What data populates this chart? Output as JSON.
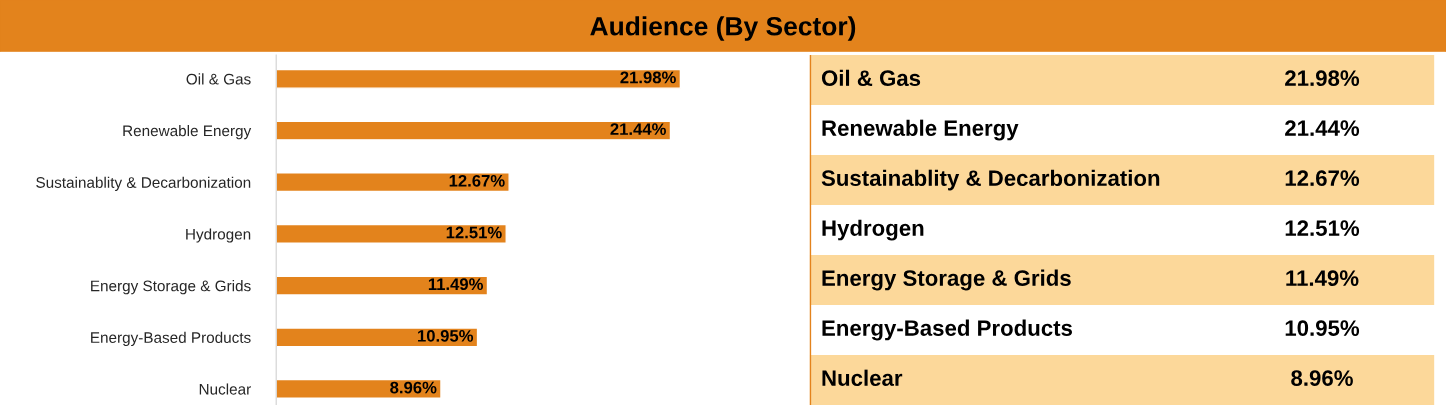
{
  "chart_data": {
    "type": "bar",
    "orientation": "horizontal",
    "title": "Audience (By Sector)",
    "categories": [
      "Oil & Gas",
      "Renewable Energy",
      "Sustainablity & Decarbonization",
      "Hydrogen",
      "Energy Storage & Grids",
      "Energy-Based Products",
      "Nuclear"
    ],
    "values": [
      21.98,
      21.44,
      12.67,
      12.51,
      11.49,
      10.95,
      8.96
    ],
    "value_labels": [
      "21.98%",
      "21.44%",
      "12.67%",
      "12.51%",
      "11.49%",
      "10.95%",
      "8.96%"
    ],
    "color": "#e3831c",
    "grid": false,
    "legend": false
  }
}
